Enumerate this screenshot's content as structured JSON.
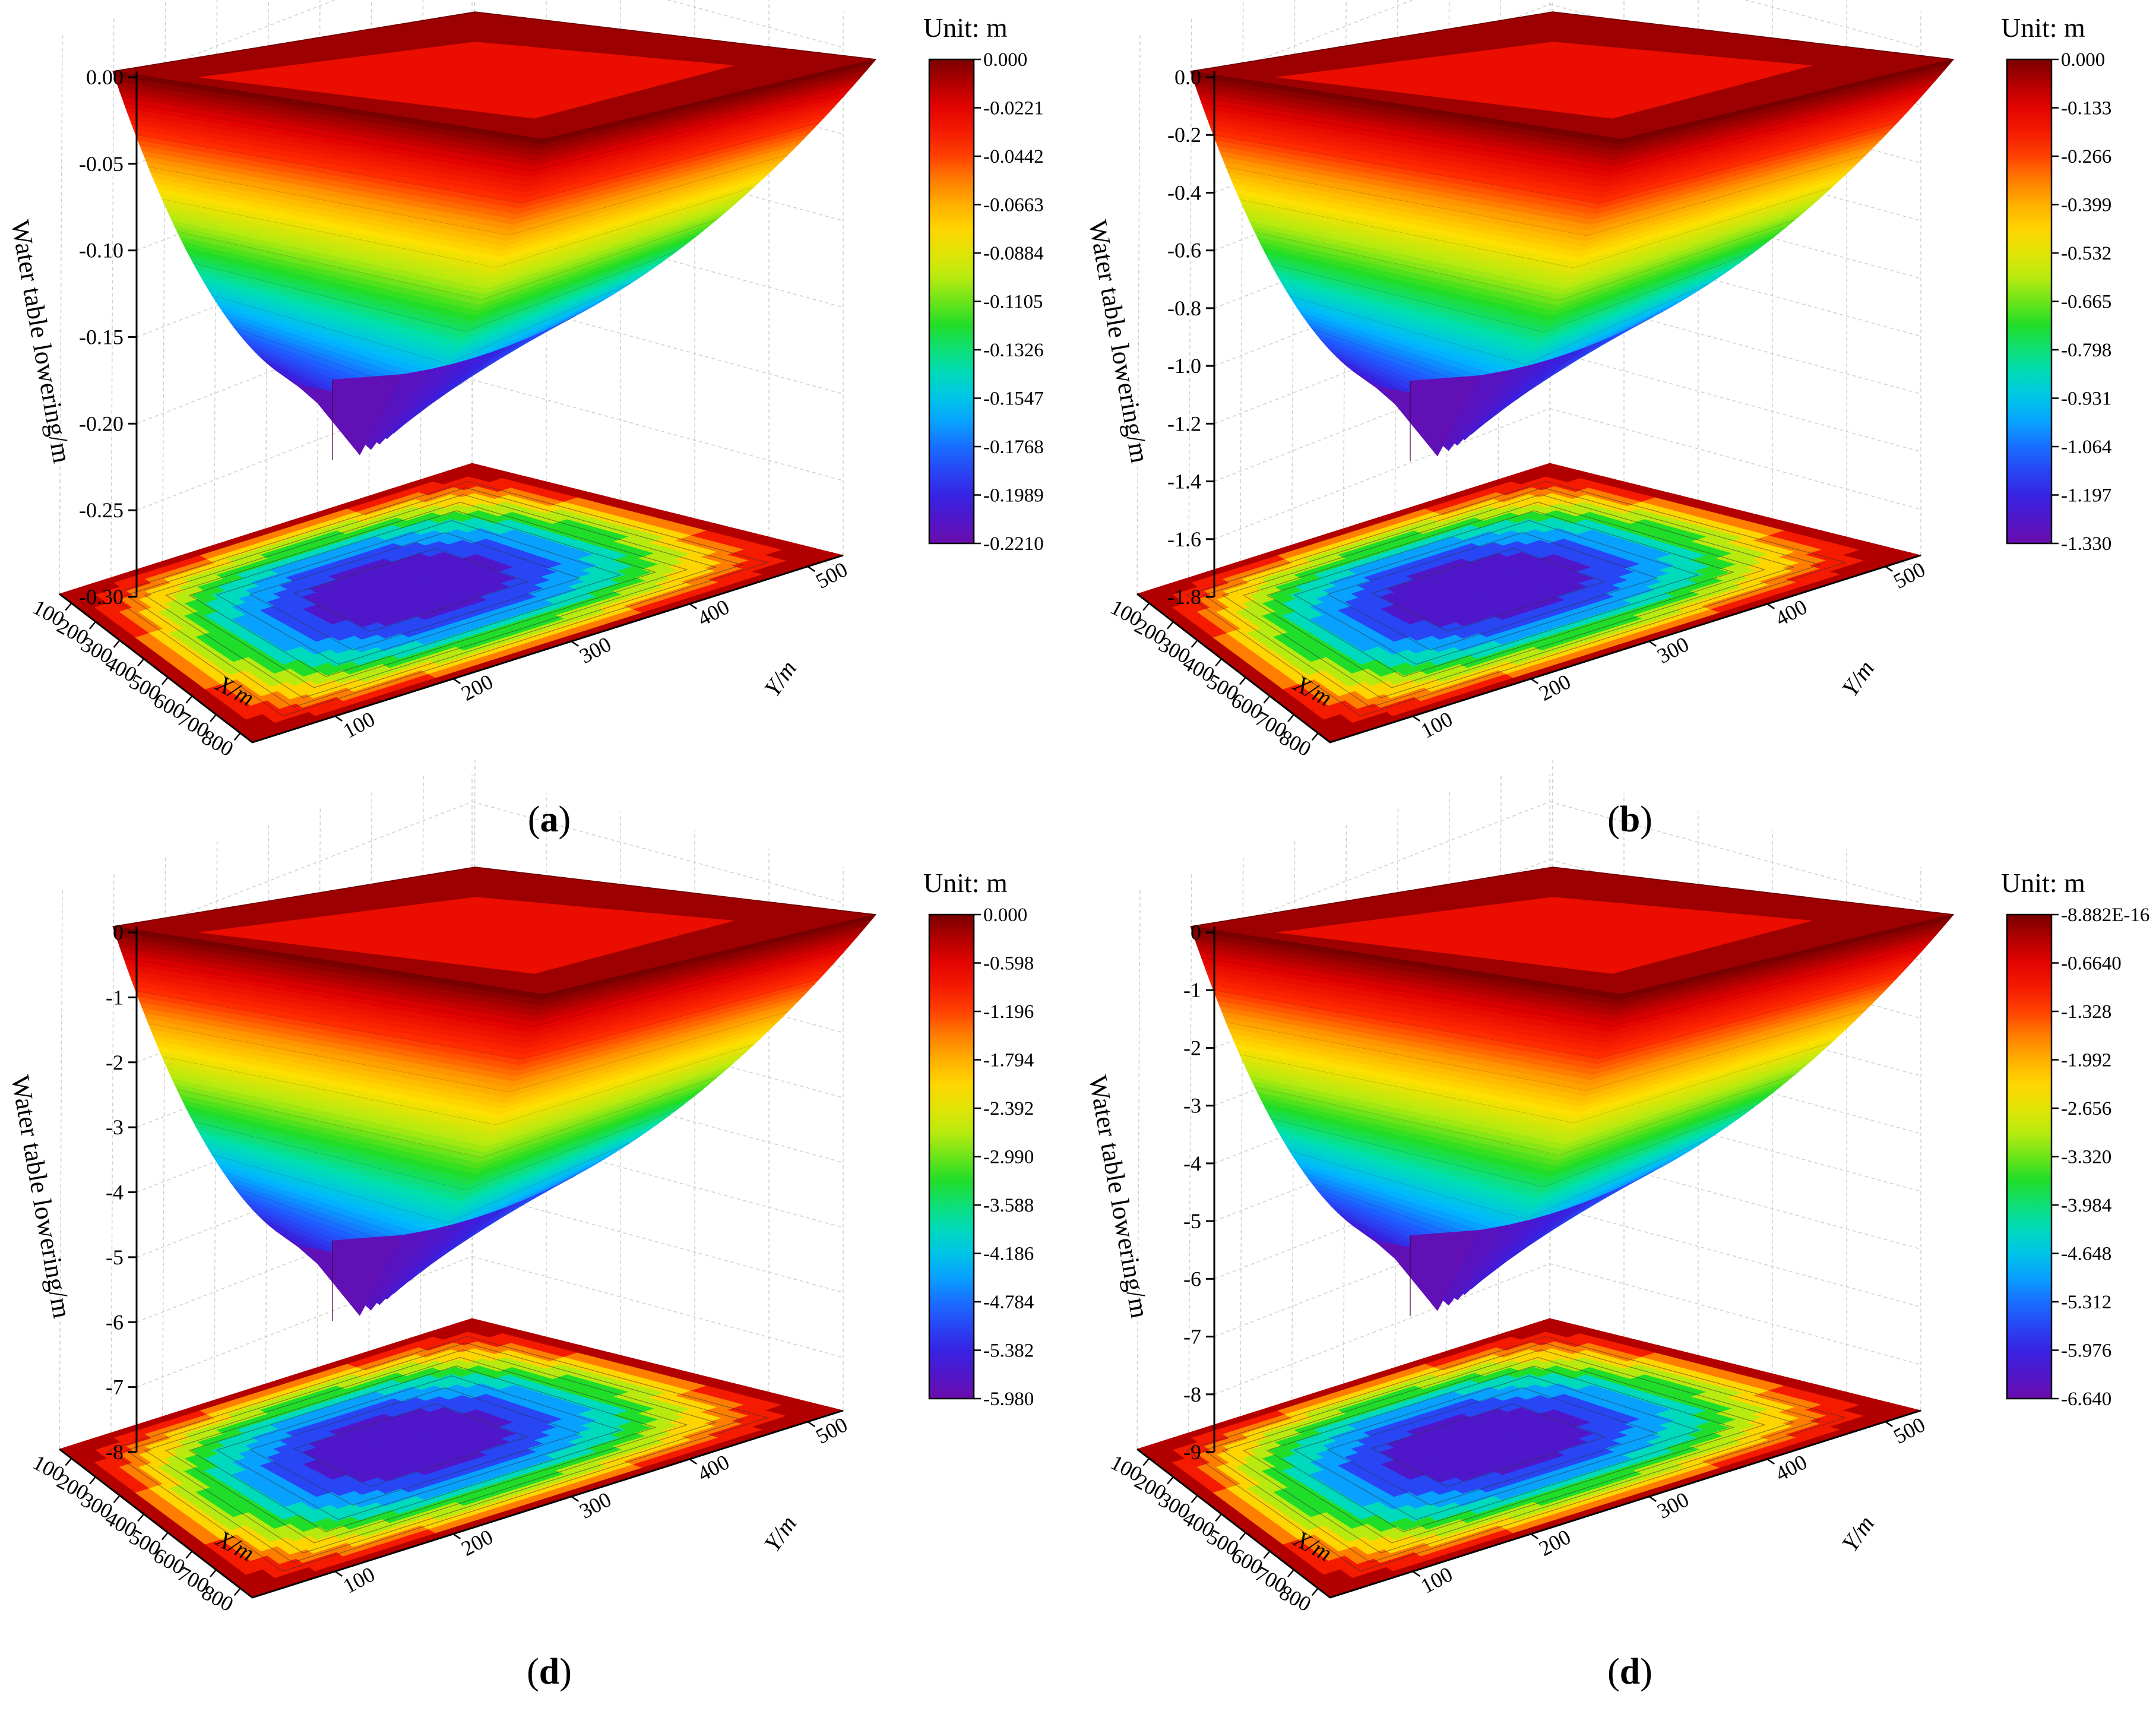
{
  "chart_data": [
    {
      "type": "surface3d",
      "panel": "a",
      "caption_letter": "a",
      "zlabel": "Water table lowering/m",
      "xlabel": "X/m",
      "ylabel": "Y/m",
      "z_ticks": [
        "0.00",
        "-0.05",
        "-0.10",
        "-0.15",
        "-0.20",
        "-0.25",
        "-0.30"
      ],
      "zlim": [
        -0.3,
        0.0
      ],
      "x_ticks": [
        "100",
        "200",
        "300",
        "400",
        "500",
        "600",
        "700",
        "800"
      ],
      "y_ticks": [
        "100",
        "200",
        "300",
        "400",
        "500"
      ],
      "min_value": -0.221,
      "colorbar": {
        "unit": "Unit:  m",
        "ticks": [
          "0.000",
          "-0.0221",
          "-0.0442",
          "-0.0663",
          "-0.0884",
          "-0.1105",
          "-0.1326",
          "-0.1547",
          "-0.1768",
          "-0.1989",
          "-0.2210"
        ]
      }
    },
    {
      "type": "surface3d",
      "panel": "b",
      "caption_letter": "b",
      "zlabel": "Water table lowering/m",
      "xlabel": "X/m",
      "ylabel": "Y/m",
      "z_ticks": [
        "0.0",
        "-0.2",
        "-0.4",
        "-0.6",
        "-0.8",
        "-1.0",
        "-1.2",
        "-1.4",
        "-1.6",
        "-1.8"
      ],
      "zlim": [
        -1.8,
        0.0
      ],
      "x_ticks": [
        "100",
        "200",
        "300",
        "400",
        "500",
        "600",
        "700",
        "800"
      ],
      "y_ticks": [
        "100",
        "200",
        "300",
        "400",
        "500"
      ],
      "min_value": -1.33,
      "colorbar": {
        "unit": "Unit:  m",
        "ticks": [
          "0.000",
          "-0.133",
          "-0.266",
          "-0.399",
          "-0.532",
          "-0.665",
          "-0.798",
          "-0.931",
          "-1.064",
          "-1.197",
          "-1.330"
        ]
      }
    },
    {
      "type": "surface3d",
      "panel": "c",
      "caption_letter": "d",
      "zlabel": "Water table lowering/m",
      "xlabel": "X/m",
      "ylabel": "Y/m",
      "z_ticks": [
        "0",
        "-1",
        "-2",
        "-3",
        "-4",
        "-5",
        "-6",
        "-7",
        "-8"
      ],
      "zlim": [
        -8,
        0
      ],
      "x_ticks": [
        "100",
        "200",
        "300",
        "400",
        "500",
        "600",
        "700",
        "800"
      ],
      "y_ticks": [
        "100",
        "200",
        "300",
        "400",
        "500"
      ],
      "min_value": -5.98,
      "colorbar": {
        "unit": "Unit:  m",
        "ticks": [
          "0.000",
          "-0.598",
          "-1.196",
          "-1.794",
          "-2.392",
          "-2.990",
          "-3.588",
          "-4.186",
          "-4.784",
          "-5.382",
          "-5.980"
        ]
      }
    },
    {
      "type": "surface3d",
      "panel": "d",
      "caption_letter": "d",
      "zlabel": "Water table lowering/m",
      "xlabel": "X/m",
      "ylabel": "Y/m",
      "z_ticks": [
        "0",
        "-1",
        "-2",
        "-3",
        "-4",
        "-5",
        "-6",
        "-7",
        "-8",
        "-9"
      ],
      "zlim": [
        -9,
        0
      ],
      "x_ticks": [
        "100",
        "200",
        "300",
        "400",
        "500",
        "600",
        "700",
        "800"
      ],
      "y_ticks": [
        "100",
        "200",
        "300",
        "400",
        "500"
      ],
      "min_value": -6.64,
      "colorbar": {
        "unit": "Unit:  m",
        "ticks": [
          "-8.882E-16",
          "-0.6640",
          "-1.328",
          "-1.992",
          "-2.656",
          "-3.320",
          "-3.984",
          "-4.648",
          "-5.312",
          "-5.976",
          "-6.640"
        ]
      }
    }
  ],
  "colors": {
    "ramp": [
      "#6a0dad",
      "#3a1ee0",
      "#1f5bff",
      "#00b8ff",
      "#00e0b0",
      "#22dd22",
      "#b5ea10",
      "#ffe000",
      "#ff9a00",
      "#ff2a00",
      "#e00000",
      "#7a0000"
    ]
  }
}
